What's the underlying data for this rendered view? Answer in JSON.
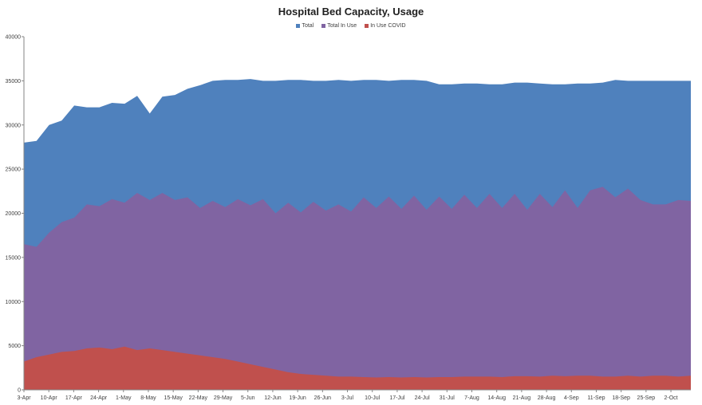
{
  "chart_data": {
    "type": "area",
    "title": "Hospital Bed Capacity, Usage",
    "xlabel": "",
    "ylabel": "",
    "ylim": [
      0,
      40000
    ],
    "yticks": [
      0,
      5000,
      10000,
      15000,
      20000,
      25000,
      30000,
      35000,
      40000
    ],
    "x_tick_labels": [
      "3-Apr",
      "10-Apr",
      "17-Apr",
      "24-Apr",
      "1-May",
      "8-May",
      "15-May",
      "22-May",
      "29-May",
      "5-Jun",
      "12-Jun",
      "19-Jun",
      "26-Jun",
      "3-Jul",
      "10-Jul",
      "17-Jul",
      "24-Jul",
      "31-Jul",
      "7-Aug",
      "14-Aug",
      "21-Aug",
      "28-Aug",
      "4-Sep",
      "11-Sep",
      "18-Sep",
      "25-Sep",
      "2-Oct"
    ],
    "legend_position": "top",
    "grid": false,
    "series": [
      {
        "name": "Total",
        "color": "#4f81bd",
        "values": [
          28000,
          28200,
          30000,
          30500,
          32200,
          32000,
          32000,
          32500,
          32400,
          33300,
          31300,
          33200,
          33400,
          34100,
          34500,
          35000,
          35100,
          35100,
          35200,
          35000,
          35000,
          35100,
          35100,
          35000,
          35000,
          35100,
          35000,
          35100,
          35100,
          35000,
          35100,
          35100,
          35000,
          34600,
          34600,
          34700,
          34700,
          34600,
          34600,
          34800,
          34800,
          34700,
          34600,
          34600,
          34700,
          34700,
          34800,
          35100,
          35000,
          35000,
          35000,
          35000,
          35000,
          35000
        ]
      },
      {
        "name": "Total In Use",
        "color": "#8064a2",
        "values": [
          16500,
          16200,
          17800,
          19000,
          19500,
          21000,
          20800,
          21600,
          21200,
          22300,
          21500,
          22300,
          21500,
          21800,
          20600,
          21400,
          20700,
          21600,
          20900,
          21600,
          20000,
          21200,
          20100,
          21300,
          20300,
          21000,
          20200,
          21800,
          20600,
          21900,
          20500,
          22000,
          20400,
          21900,
          20500,
          22100,
          20600,
          22200,
          20600,
          22200,
          20400,
          22200,
          20700,
          22600,
          20600,
          22600,
          23000,
          21800,
          22800,
          21500,
          21000,
          21000,
          21500,
          21400
        ]
      },
      {
        "name": "In Use COVID",
        "color": "#c0504d",
        "values": [
          3200,
          3700,
          4000,
          4300,
          4400,
          4700,
          4800,
          4600,
          4900,
          4500,
          4700,
          4500,
          4300,
          4100,
          3900,
          3700,
          3500,
          3200,
          2900,
          2600,
          2300,
          2000,
          1800,
          1700,
          1600,
          1500,
          1500,
          1450,
          1400,
          1450,
          1400,
          1450,
          1400,
          1450,
          1450,
          1500,
          1500,
          1500,
          1450,
          1550,
          1550,
          1500,
          1600,
          1550,
          1600,
          1600,
          1500,
          1500,
          1600,
          1500,
          1600,
          1600,
          1500,
          1600
        ]
      }
    ]
  }
}
